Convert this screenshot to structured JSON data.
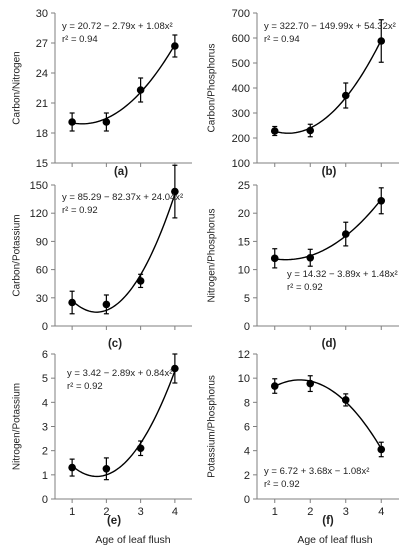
{
  "figure": {
    "xlabel": "Age of leaf flush"
  },
  "chart_data": [
    {
      "type": "scatter",
      "panel_label": "(a)",
      "ylabel": "Carbon/Nitrogen",
      "x": [
        1,
        2,
        3,
        4
      ],
      "y": [
        19.1,
        19.1,
        22.3,
        26.7
      ],
      "err": [
        0.9,
        0.9,
        1.2,
        1.1
      ],
      "ylim": [
        15,
        30
      ],
      "yticks": [
        15,
        18,
        21,
        24,
        27,
        30
      ],
      "xticks": [
        1,
        2,
        3,
        4
      ],
      "xlim": [
        0.5,
        4.5
      ],
      "fit": [
        20.72,
        -2.79,
        1.08
      ],
      "equation": "y = 20.72 − 2.79x + 1.08x²",
      "r2": "r² = 0.94"
    },
    {
      "type": "scatter",
      "panel_label": "(b)",
      "ylabel": "Carbon/Phosphorus",
      "x": [
        1,
        2,
        3,
        4
      ],
      "y": [
        228,
        230,
        370,
        588
      ],
      "err": [
        18,
        25,
        50,
        85
      ],
      "ylim": [
        100,
        700
      ],
      "yticks": [
        100,
        200,
        300,
        400,
        500,
        600,
        700
      ],
      "xticks": [
        1,
        2,
        3,
        4
      ],
      "xlim": [
        0.5,
        4.5
      ],
      "fit": [
        322.7,
        -149.99,
        54.32
      ],
      "equation": "y = 322.70 − 149.99x + 54.32x²",
      "r2": "r² = 0.94"
    },
    {
      "type": "scatter",
      "panel_label": "(c)",
      "ylabel": "Carbon/Potassium",
      "x": [
        1,
        2,
        3,
        4
      ],
      "y": [
        25,
        23,
        48,
        143
      ],
      "err": [
        12,
        10,
        7,
        28
      ],
      "ylim": [
        0,
        150
      ],
      "yticks": [
        0,
        30,
        60,
        90,
        120,
        150
      ],
      "xticks": [
        1,
        2,
        3,
        4
      ],
      "xlim": [
        0.5,
        4.5
      ],
      "fit": [
        85.29,
        -82.37,
        24.04
      ],
      "equation": "y = 85.29 − 82.37x + 24.04x²",
      "r2": "r² = 0.92"
    },
    {
      "type": "scatter",
      "panel_label": "(d)",
      "ylabel": "Nitrogen/Phosphorus",
      "x": [
        1,
        2,
        3,
        4
      ],
      "y": [
        12.0,
        12.1,
        16.3,
        22.2
      ],
      "err": [
        1.7,
        1.5,
        2.1,
        2.3
      ],
      "ylim": [
        0,
        25
      ],
      "yticks": [
        0,
        5,
        10,
        15,
        20,
        25
      ],
      "xticks": [
        1,
        2,
        3,
        4
      ],
      "xlim": [
        0.5,
        4.5
      ],
      "fit": [
        14.32,
        -3.89,
        1.48
      ],
      "equation": "y = 14.32 − 3.89x + 1.48x²",
      "r2": "r² = 0.92"
    },
    {
      "type": "scatter",
      "panel_label": "(e)",
      "ylabel": "Nitrogen/Potassium",
      "x": [
        1,
        2,
        3,
        4
      ],
      "y": [
        1.3,
        1.25,
        2.1,
        5.4
      ],
      "err": [
        0.35,
        0.45,
        0.3,
        0.6
      ],
      "ylim": [
        0,
        6
      ],
      "yticks": [
        0,
        1,
        2,
        3,
        4,
        5,
        6
      ],
      "xticks": [
        1,
        2,
        3,
        4
      ],
      "xlim": [
        0.5,
        4.5
      ],
      "fit": [
        3.42,
        -2.89,
        0.84
      ],
      "equation": "y = 3.42 − 2.89x + 0.84x²",
      "r2": "r² = 0.92"
    },
    {
      "type": "scatter",
      "panel_label": "(f)",
      "ylabel": "Potassium/Phosphorus",
      "x": [
        1,
        2,
        3,
        4
      ],
      "y": [
        9.35,
        9.55,
        8.2,
        4.1
      ],
      "err": [
        0.6,
        0.65,
        0.5,
        0.6
      ],
      "ylim": [
        0,
        12
      ],
      "yticks": [
        0,
        2,
        4,
        6,
        8,
        10,
        12
      ],
      "xticks": [
        1,
        2,
        3,
        4
      ],
      "xlim": [
        0.5,
        4.5
      ],
      "fit": [
        6.72,
        3.68,
        -1.08
      ],
      "equation": "y = 6.72 + 3.68x − 1.08x²",
      "r2": "r² = 0.92"
    }
  ]
}
